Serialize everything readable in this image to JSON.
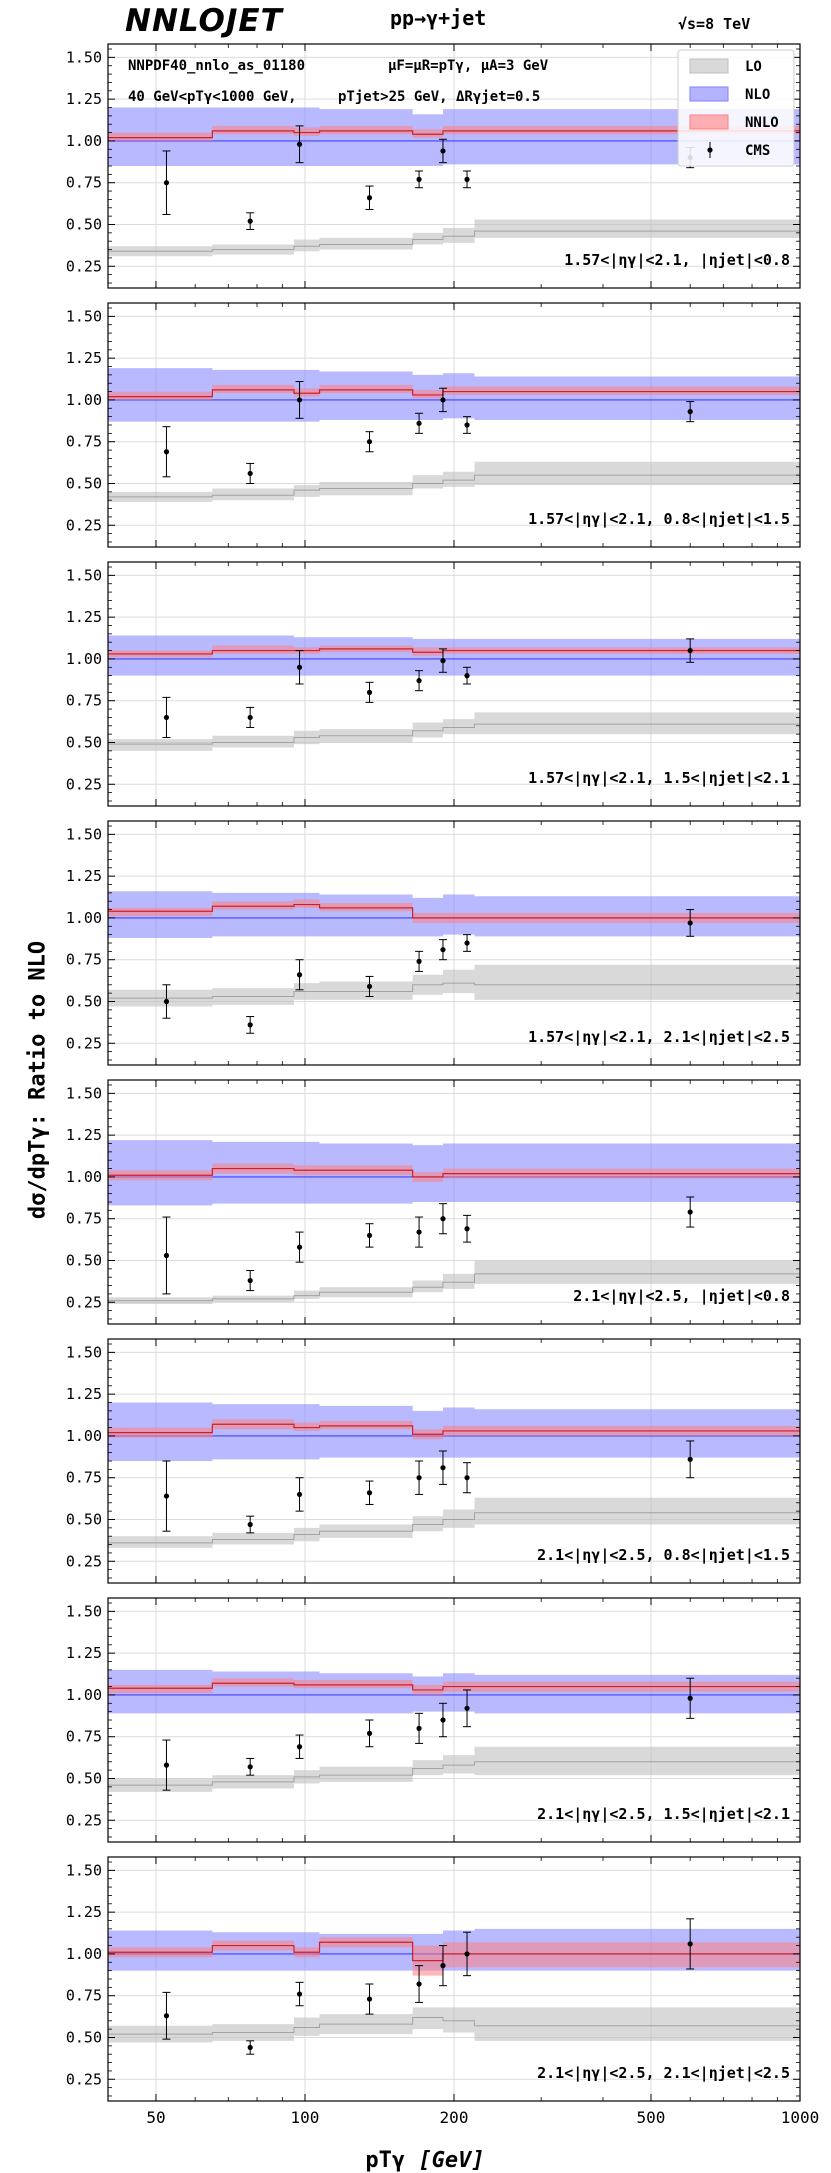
{
  "header": {
    "logo": "NNLOJET",
    "process": "pp→γ+jet",
    "energy": "√s=8 TeV"
  },
  "info": {
    "line1a": "NNPDF40_nnlo_as_01180",
    "line1b": "μF=μR=pTγ, μA=3 GeV",
    "line2a": "40 GeV<pTγ<1000 GeV,",
    "line2b": "pTjet>25 GeV, ΔRγjet=0.5"
  },
  "legend": [
    {
      "label": "LO",
      "color": "#bfbfbf"
    },
    {
      "label": "NLO",
      "color": "#8080ff"
    },
    {
      "label": "NNLO",
      "color": "#ff8080"
    },
    {
      "label": "CMS",
      "color": "#000000"
    }
  ],
  "axes": {
    "ylabel": "dσ/dpTγ: Ratio to NLO",
    "xlabel": "pTγ",
    "xunit": "[GeV]",
    "xscale": "log",
    "xlim": [
      40,
      1000
    ],
    "ylim": [
      0.12,
      1.58
    ],
    "xticks": [
      "50",
      "100",
      "200",
      "500",
      "1000"
    ],
    "yticks": [
      "0.25",
      "0.50",
      "0.75",
      "1.00",
      "1.25",
      "1.50"
    ]
  },
  "chart_data": [
    {
      "type": "line",
      "title": "1.57<|ηγ|<2.1, |ηjet|<0.8",
      "bins": [
        40,
        65,
        95,
        107,
        165,
        190,
        220,
        1000
      ],
      "series": [
        {
          "name": "LO",
          "center": [
            0.34,
            0.35,
            0.37,
            0.38,
            0.41,
            0.43,
            0.46
          ],
          "lo": [
            0.31,
            0.32,
            0.34,
            0.35,
            0.38,
            0.39,
            0.42
          ],
          "hi": [
            0.37,
            0.38,
            0.41,
            0.42,
            0.45,
            0.48,
            0.53
          ]
        },
        {
          "name": "NLO",
          "center": [
            1.0,
            1.0,
            1.0,
            1.0,
            1.0,
            1.0,
            1.0
          ],
          "lo": [
            0.85,
            0.85,
            0.85,
            0.85,
            0.85,
            0.86,
            0.86
          ],
          "hi": [
            1.2,
            1.2,
            1.2,
            1.19,
            1.16,
            1.19,
            1.19
          ]
        },
        {
          "name": "NNLO",
          "center": [
            1.02,
            1.06,
            1.05,
            1.06,
            1.04,
            1.06,
            1.06
          ],
          "lo": [
            1.0,
            1.04,
            1.03,
            1.04,
            1.02,
            1.04,
            1.04
          ],
          "hi": [
            1.05,
            1.09,
            1.08,
            1.09,
            1.07,
            1.09,
            1.09
          ]
        }
      ],
      "cms": {
        "x": [
          52.5,
          77.5,
          97.5,
          135,
          170,
          190,
          212.5,
          600
        ],
        "y": [
          0.75,
          0.52,
          0.98,
          0.66,
          0.77,
          0.94,
          0.77,
          0.9
        ],
        "err": [
          0.19,
          0.05,
          0.11,
          0.07,
          0.05,
          0.07,
          0.05,
          0.06
        ]
      }
    },
    {
      "type": "line",
      "title": "1.57<|ηγ|<2.1, 0.8<|ηjet|<1.5",
      "bins": [
        40,
        65,
        95,
        107,
        165,
        190,
        220,
        1000
      ],
      "series": [
        {
          "name": "LO",
          "center": [
            0.42,
            0.43,
            0.46,
            0.47,
            0.5,
            0.52,
            0.55
          ],
          "lo": [
            0.39,
            0.4,
            0.42,
            0.43,
            0.47,
            0.48,
            0.49
          ],
          "hi": [
            0.45,
            0.47,
            0.49,
            0.51,
            0.55,
            0.57,
            0.63
          ]
        },
        {
          "name": "NLO",
          "center": [
            1.0,
            1.0,
            1.0,
            1.0,
            1.0,
            1.0,
            1.0
          ],
          "lo": [
            0.87,
            0.87,
            0.87,
            0.88,
            0.88,
            0.89,
            0.88
          ],
          "hi": [
            1.19,
            1.18,
            1.18,
            1.17,
            1.15,
            1.16,
            1.14
          ]
        },
        {
          "name": "NNLO",
          "center": [
            1.02,
            1.06,
            1.04,
            1.06,
            1.03,
            1.05,
            1.05
          ],
          "lo": [
            1.0,
            1.04,
            1.02,
            1.04,
            1.01,
            1.03,
            1.03
          ],
          "hi": [
            1.05,
            1.09,
            1.07,
            1.09,
            1.06,
            1.08,
            1.08
          ]
        }
      ],
      "cms": {
        "x": [
          52.5,
          77.5,
          97.5,
          135,
          170,
          190,
          212.5,
          600
        ],
        "y": [
          0.69,
          0.56,
          1.0,
          0.75,
          0.86,
          1.0,
          0.85,
          0.93
        ],
        "err": [
          0.15,
          0.06,
          0.11,
          0.06,
          0.06,
          0.07,
          0.05,
          0.06
        ]
      }
    },
    {
      "type": "line",
      "title": "1.57<|ηγ|<2.1, 1.5<|ηjet|<2.1",
      "bins": [
        40,
        65,
        95,
        107,
        165,
        190,
        220,
        1000
      ],
      "series": [
        {
          "name": "LO",
          "center": [
            0.49,
            0.5,
            0.53,
            0.54,
            0.57,
            0.59,
            0.61
          ],
          "lo": [
            0.45,
            0.47,
            0.49,
            0.5,
            0.53,
            0.55,
            0.55
          ],
          "hi": [
            0.52,
            0.54,
            0.57,
            0.58,
            0.62,
            0.64,
            0.68
          ]
        },
        {
          "name": "NLO",
          "center": [
            1.0,
            1.0,
            1.0,
            1.0,
            1.0,
            1.0,
            1.0
          ],
          "lo": [
            0.9,
            0.9,
            0.9,
            0.9,
            0.9,
            0.9,
            0.9
          ],
          "hi": [
            1.14,
            1.14,
            1.13,
            1.13,
            1.12,
            1.12,
            1.12
          ]
        },
        {
          "name": "NNLO",
          "center": [
            1.03,
            1.05,
            1.05,
            1.06,
            1.04,
            1.05,
            1.05
          ],
          "lo": [
            1.01,
            1.03,
            1.03,
            1.04,
            1.02,
            1.03,
            1.03
          ],
          "hi": [
            1.05,
            1.08,
            1.07,
            1.08,
            1.07,
            1.07,
            1.07
          ]
        }
      ],
      "cms": {
        "x": [
          52.5,
          77.5,
          97.5,
          135,
          170,
          190,
          212.5,
          600
        ],
        "y": [
          0.65,
          0.65,
          0.95,
          0.8,
          0.87,
          0.99,
          0.9,
          1.05
        ],
        "err": [
          0.12,
          0.06,
          0.1,
          0.06,
          0.06,
          0.07,
          0.05,
          0.07
        ]
      }
    },
    {
      "type": "line",
      "title": "1.57<|ηγ|<2.1, 2.1<|ηjet|<2.5",
      "bins": [
        40,
        65,
        95,
        107,
        165,
        190,
        220,
        1000
      ],
      "series": [
        {
          "name": "LO",
          "center": [
            0.52,
            0.53,
            0.56,
            0.56,
            0.6,
            0.61,
            0.6
          ],
          "lo": [
            0.47,
            0.48,
            0.51,
            0.51,
            0.54,
            0.55,
            0.51
          ],
          "hi": [
            0.57,
            0.58,
            0.61,
            0.62,
            0.66,
            0.69,
            0.72
          ]
        },
        {
          "name": "NLO",
          "center": [
            1.0,
            1.0,
            1.0,
            1.0,
            1.0,
            1.0,
            1.0
          ],
          "lo": [
            0.88,
            0.89,
            0.89,
            0.89,
            0.89,
            0.9,
            0.89
          ],
          "hi": [
            1.16,
            1.15,
            1.15,
            1.14,
            1.12,
            1.14,
            1.13
          ]
        },
        {
          "name": "NNLO",
          "center": [
            1.04,
            1.07,
            1.08,
            1.06,
            1.0,
            1.0,
            1.0
          ],
          "lo": [
            1.01,
            1.05,
            1.06,
            1.04,
            0.97,
            0.97,
            0.97
          ],
          "hi": [
            1.06,
            1.1,
            1.11,
            1.09,
            1.03,
            1.03,
            1.03
          ]
        }
      ],
      "cms": {
        "x": [
          52.5,
          77.5,
          97.5,
          135,
          170,
          190,
          212.5,
          600
        ],
        "y": [
          0.5,
          0.36,
          0.66,
          0.59,
          0.74,
          0.81,
          0.85,
          0.97
        ],
        "err": [
          0.1,
          0.05,
          0.09,
          0.06,
          0.06,
          0.06,
          0.05,
          0.08
        ]
      }
    },
    {
      "type": "line",
      "title": "2.1<|ηγ|<2.5, |ηjet|<0.8",
      "bins": [
        40,
        65,
        95,
        107,
        165,
        190,
        220,
        1000
      ],
      "series": [
        {
          "name": "LO",
          "center": [
            0.26,
            0.27,
            0.29,
            0.31,
            0.34,
            0.37,
            0.42
          ],
          "lo": [
            0.24,
            0.25,
            0.27,
            0.28,
            0.31,
            0.33,
            0.36
          ],
          "hi": [
            0.28,
            0.29,
            0.32,
            0.34,
            0.38,
            0.42,
            0.5
          ]
        },
        {
          "name": "NLO",
          "center": [
            1.0,
            1.0,
            1.0,
            1.0,
            1.0,
            1.0,
            1.0
          ],
          "lo": [
            0.83,
            0.84,
            0.84,
            0.84,
            0.85,
            0.85,
            0.85
          ],
          "hi": [
            1.22,
            1.21,
            1.21,
            1.2,
            1.19,
            1.2,
            1.2
          ]
        },
        {
          "name": "NNLO",
          "center": [
            1.01,
            1.05,
            1.04,
            1.04,
            1.0,
            1.02,
            1.02
          ],
          "lo": [
            0.98,
            1.02,
            1.01,
            1.01,
            0.97,
            0.99,
            0.99
          ],
          "hi": [
            1.04,
            1.08,
            1.07,
            1.07,
            1.03,
            1.05,
            1.05
          ]
        }
      ],
      "cms": {
        "x": [
          52.5,
          77.5,
          97.5,
          135,
          170,
          190,
          212.5,
          600
        ],
        "y": [
          0.53,
          0.38,
          0.58,
          0.65,
          0.67,
          0.75,
          0.69,
          0.79
        ],
        "err": [
          0.23,
          0.06,
          0.09,
          0.07,
          0.09,
          0.09,
          0.08,
          0.09
        ]
      }
    },
    {
      "type": "line",
      "title": "2.1<|ηγ|<2.5, 0.8<|ηjet|<1.5",
      "bins": [
        40,
        65,
        95,
        107,
        165,
        190,
        220,
        1000
      ],
      "series": [
        {
          "name": "LO",
          "center": [
            0.36,
            0.38,
            0.41,
            0.43,
            0.47,
            0.5,
            0.54
          ],
          "lo": [
            0.33,
            0.35,
            0.37,
            0.39,
            0.43,
            0.45,
            0.47
          ],
          "hi": [
            0.4,
            0.42,
            0.45,
            0.47,
            0.52,
            0.56,
            0.63
          ]
        },
        {
          "name": "NLO",
          "center": [
            1.0,
            1.0,
            1.0,
            1.0,
            1.0,
            1.0,
            1.0
          ],
          "lo": [
            0.85,
            0.86,
            0.86,
            0.87,
            0.87,
            0.87,
            0.87
          ],
          "hi": [
            1.2,
            1.19,
            1.19,
            1.18,
            1.15,
            1.17,
            1.16
          ]
        },
        {
          "name": "NNLO",
          "center": [
            1.02,
            1.07,
            1.05,
            1.06,
            1.01,
            1.03,
            1.03
          ],
          "lo": [
            0.99,
            1.04,
            1.03,
            1.04,
            0.98,
            1.0,
            1.0
          ],
          "hi": [
            1.05,
            1.1,
            1.08,
            1.09,
            1.04,
            1.06,
            1.06
          ]
        }
      ],
      "cms": {
        "x": [
          52.5,
          77.5,
          97.5,
          135,
          170,
          190,
          212.5,
          600
        ],
        "y": [
          0.64,
          0.47,
          0.65,
          0.66,
          0.75,
          0.81,
          0.75,
          0.86
        ],
        "err": [
          0.21,
          0.05,
          0.1,
          0.07,
          0.1,
          0.1,
          0.09,
          0.11
        ]
      }
    },
    {
      "type": "line",
      "title": "2.1<|ηγ|<2.5, 1.5<|ηjet|<2.1",
      "bins": [
        40,
        65,
        95,
        107,
        165,
        190,
        220,
        1000
      ],
      "series": [
        {
          "name": "LO",
          "center": [
            0.46,
            0.48,
            0.51,
            0.52,
            0.56,
            0.58,
            0.6
          ],
          "lo": [
            0.42,
            0.44,
            0.47,
            0.48,
            0.52,
            0.53,
            0.52
          ],
          "hi": [
            0.5,
            0.52,
            0.55,
            0.57,
            0.61,
            0.64,
            0.69
          ]
        },
        {
          "name": "NLO",
          "center": [
            1.0,
            1.0,
            1.0,
            1.0,
            1.0,
            1.0,
            1.0
          ],
          "lo": [
            0.89,
            0.89,
            0.89,
            0.89,
            0.9,
            0.9,
            0.89
          ],
          "hi": [
            1.15,
            1.14,
            1.14,
            1.13,
            1.11,
            1.13,
            1.12
          ]
        },
        {
          "name": "NNLO",
          "center": [
            1.04,
            1.07,
            1.06,
            1.06,
            1.03,
            1.05,
            1.05
          ],
          "lo": [
            1.01,
            1.05,
            1.04,
            1.04,
            1.0,
            1.02,
            1.02
          ],
          "hi": [
            1.06,
            1.1,
            1.09,
            1.09,
            1.06,
            1.08,
            1.08
          ]
        }
      ],
      "cms": {
        "x": [
          52.5,
          77.5,
          97.5,
          135,
          170,
          190,
          212.5,
          600
        ],
        "y": [
          0.58,
          0.57,
          0.69,
          0.77,
          0.8,
          0.85,
          0.92,
          0.98
        ],
        "err": [
          0.15,
          0.05,
          0.07,
          0.08,
          0.09,
          0.1,
          0.11,
          0.12
        ]
      }
    },
    {
      "type": "line",
      "title": "2.1<|ηγ|<2.5, 2.1<|ηjet|<2.5",
      "bins": [
        40,
        65,
        95,
        107,
        165,
        190,
        220,
        1000
      ],
      "series": [
        {
          "name": "LO",
          "center": [
            0.52,
            0.53,
            0.56,
            0.58,
            0.62,
            0.6,
            0.57
          ],
          "lo": [
            0.47,
            0.48,
            0.51,
            0.52,
            0.55,
            0.53,
            0.48
          ],
          "hi": [
            0.57,
            0.58,
            0.62,
            0.64,
            0.68,
            0.68,
            0.68
          ]
        },
        {
          "name": "NLO",
          "center": [
            1.0,
            1.0,
            1.0,
            1.0,
            1.0,
            1.0,
            1.0
          ],
          "lo": [
            0.9,
            0.9,
            0.9,
            0.9,
            0.9,
            0.9,
            0.9
          ],
          "hi": [
            1.14,
            1.13,
            1.13,
            1.12,
            1.12,
            1.14,
            1.15
          ]
        },
        {
          "name": "NNLO",
          "center": [
            1.01,
            1.05,
            1.01,
            1.07,
            0.96,
            1.0,
            1.0
          ],
          "lo": [
            0.98,
            1.02,
            0.98,
            1.04,
            0.87,
            0.92,
            0.92
          ],
          "hi": [
            1.04,
            1.08,
            1.04,
            1.1,
            1.05,
            1.07,
            1.07
          ]
        }
      ],
      "cms": {
        "x": [
          52.5,
          77.5,
          97.5,
          135,
          170,
          190,
          212.5,
          600
        ],
        "y": [
          0.63,
          0.44,
          0.76,
          0.73,
          0.82,
          0.93,
          1.0,
          1.06
        ],
        "err": [
          0.14,
          0.04,
          0.07,
          0.09,
          0.11,
          0.12,
          0.13,
          0.15
        ]
      }
    }
  ]
}
